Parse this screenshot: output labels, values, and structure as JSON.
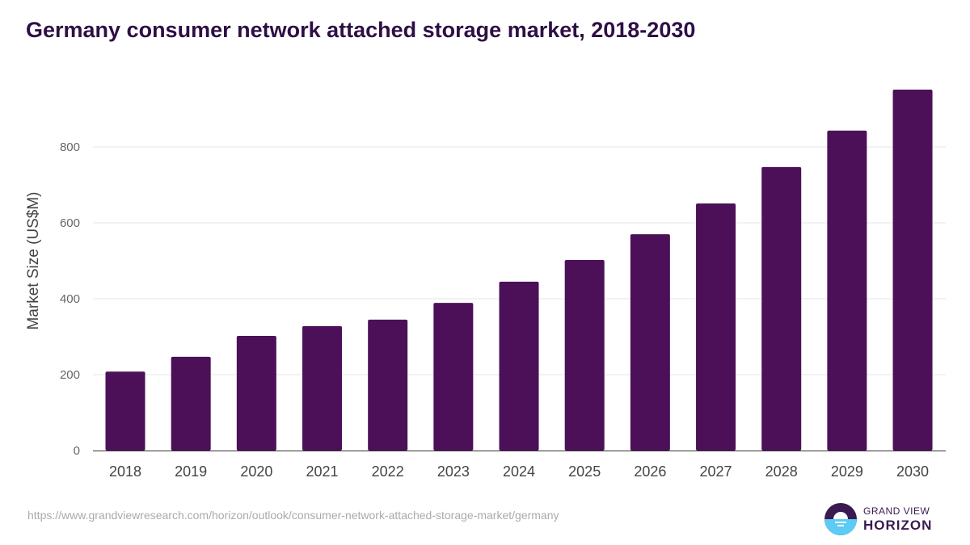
{
  "chart_data": {
    "type": "bar",
    "title": "Germany consumer network attached storage market, 2018-2030",
    "xlabel": "",
    "ylabel": "Market Size (US$M)",
    "ylim": [
      0,
      950
    ],
    "yticks": [
      0,
      200,
      400,
      600,
      800
    ],
    "grid": true,
    "categories": [
      "2018",
      "2019",
      "2020",
      "2021",
      "2022",
      "2023",
      "2024",
      "2025",
      "2026",
      "2027",
      "2028",
      "2029",
      "2030"
    ],
    "values": [
      208,
      247,
      302,
      328,
      345,
      389,
      445,
      502,
      570,
      651,
      747,
      843,
      951
    ],
    "bar_color": "#4c1058"
  },
  "source": "https://www.grandviewresearch.com/horizon/outlook/consumer-network-attached-storage-market/germany",
  "logo": {
    "line1": "GRAND VIEW",
    "line2": "HORIZON"
  }
}
